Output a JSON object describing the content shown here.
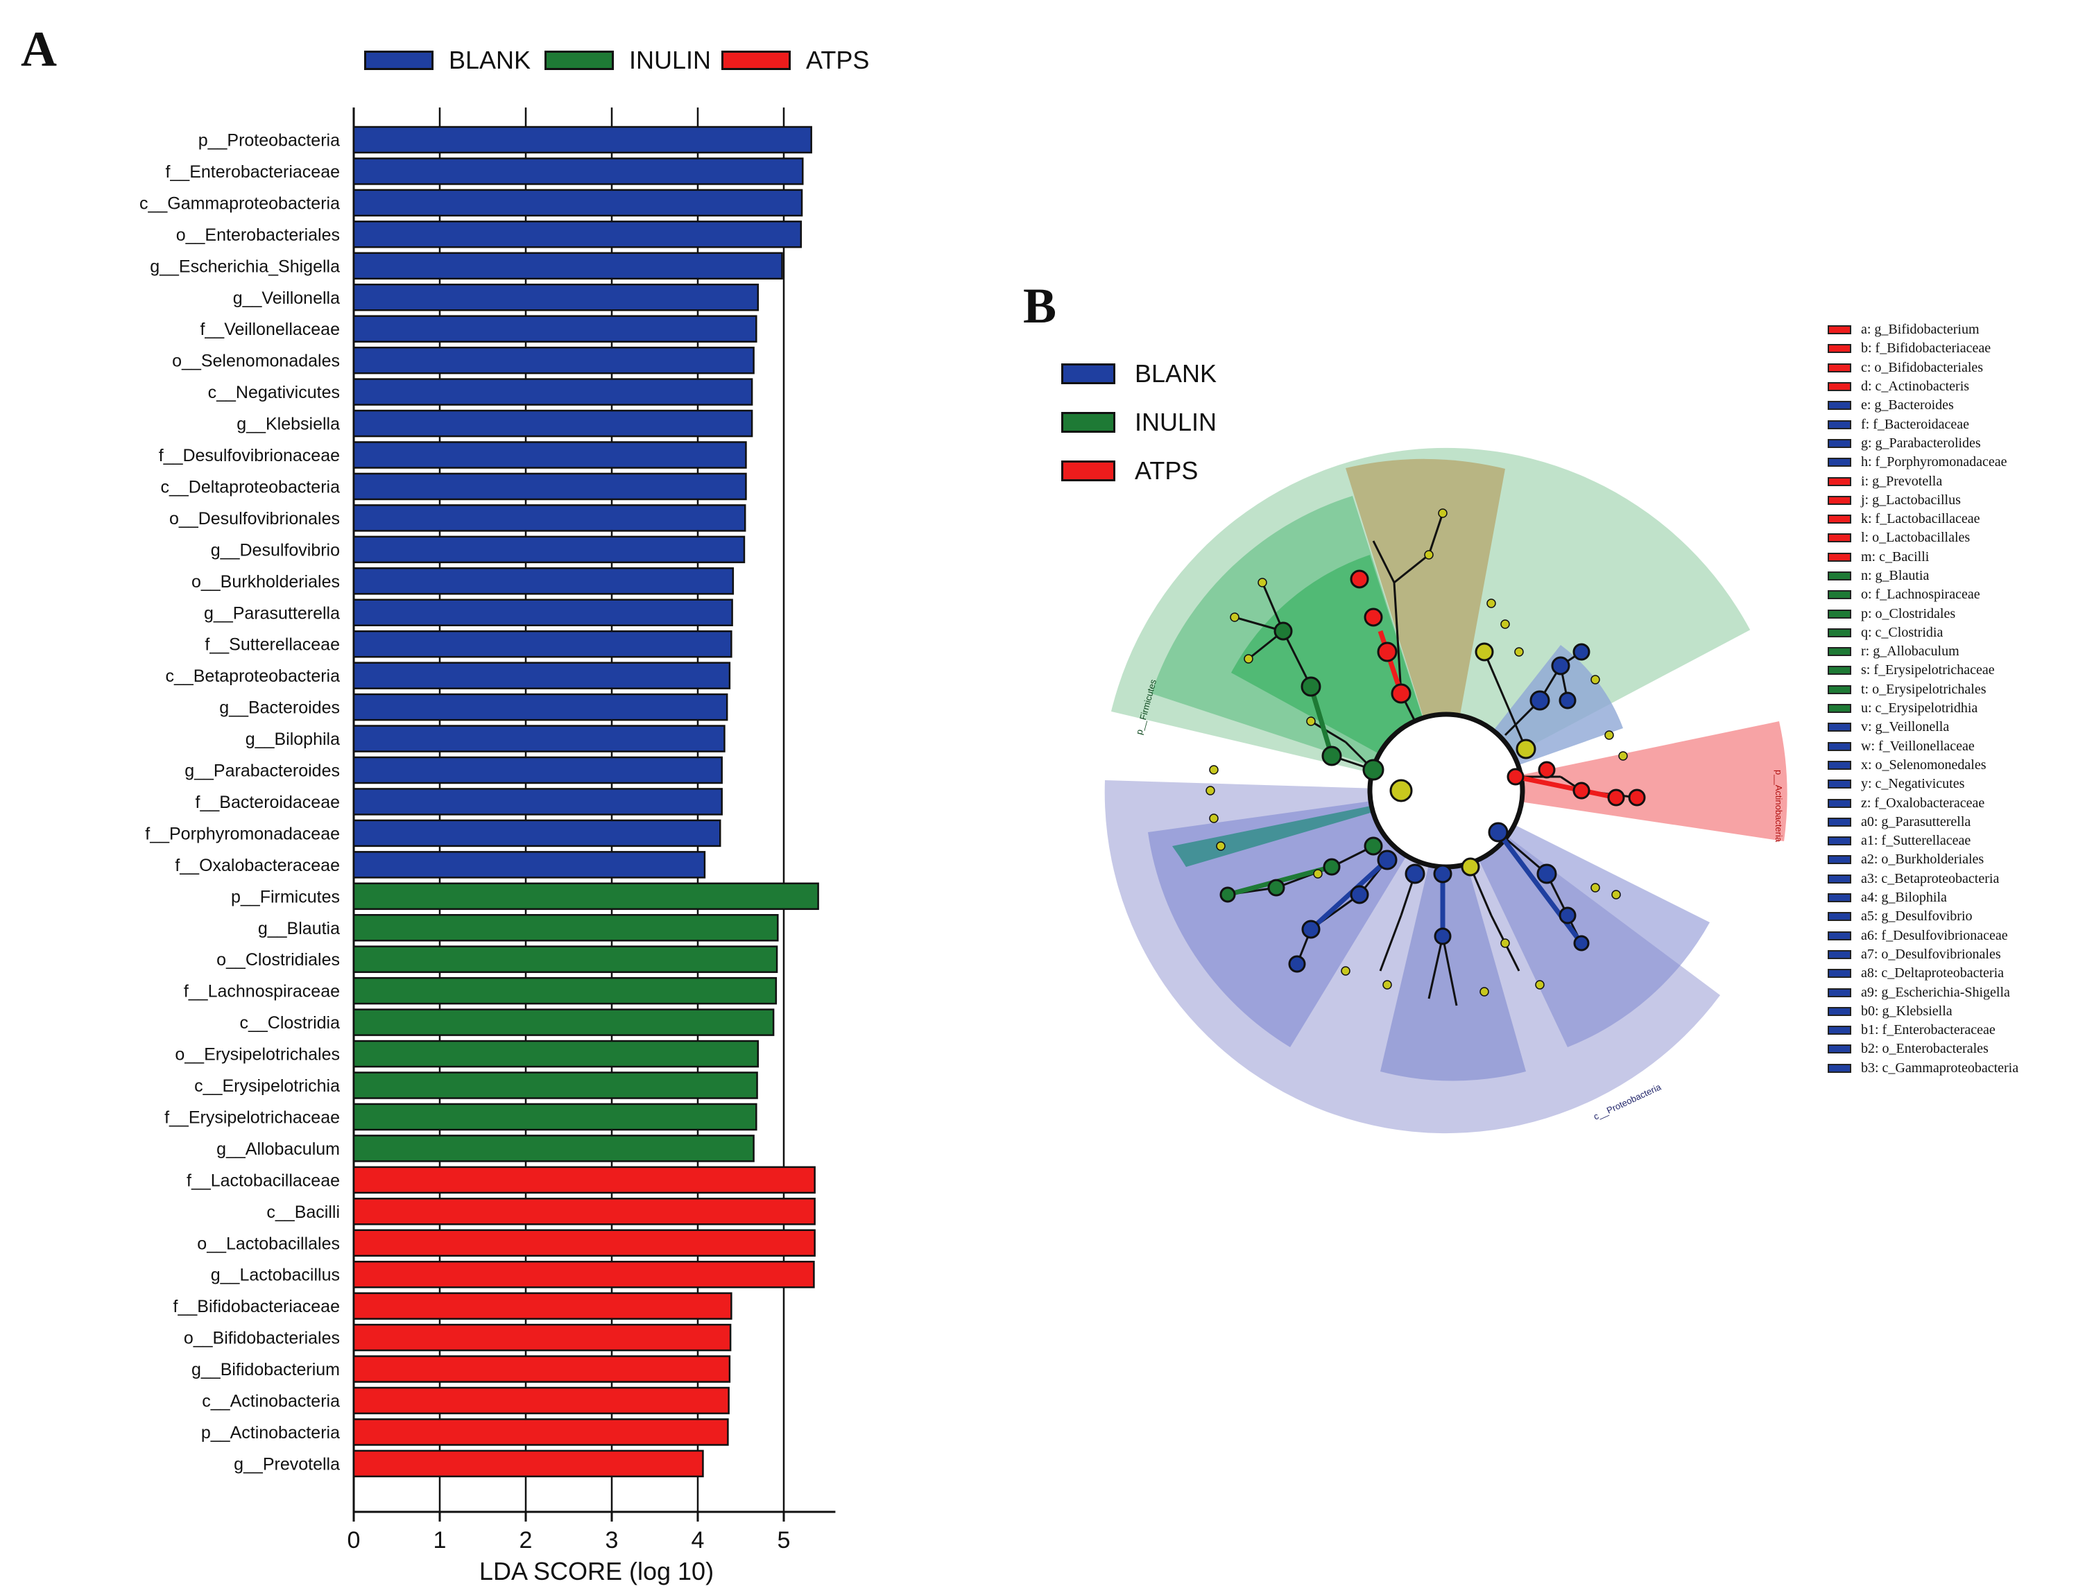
{
  "panels": {
    "a": "A",
    "b": "B"
  },
  "groups": [
    {
      "name": "BLANK",
      "color": "#1f3fa0"
    },
    {
      "name": "INULIN",
      "color": "#1e7a35"
    },
    {
      "name": "ATPS",
      "color": "#ee1c1c"
    }
  ],
  "chart_data": {
    "type": "bar",
    "orientation": "horizontal",
    "xlabel": "LDA SCORE (log 10)",
    "xlim": [
      0,
      5.6
    ],
    "xticks": [
      0,
      1,
      2,
      3,
      4,
      5
    ],
    "grid": true,
    "legend": "top",
    "categories": [
      "p__Proteobacteria",
      "f__Enterobacteriaceae",
      "c__Gammaproteobacteria",
      "o__Enterobacteriales",
      "g__Escherichia_Shigella",
      "g__Veillonella",
      "f__Veillonellaceae",
      "o__Selenomonadales",
      "c__Negativicutes",
      "g__Klebsiella",
      "f__Desulfovibrionaceae",
      "c__Deltaproteobacteria",
      "o__Desulfovibrionales",
      "g__Desulfovibrio",
      "o__Burkholderiales",
      "g__Parasutterella",
      "f__Sutterellaceae",
      "c__Betaproteobacteria",
      "g__Bacteroides",
      "g__Bilophila",
      "g__Parabacteroides",
      "f__Bacteroidaceae",
      "f__Porphyromonadaceae",
      "f__Oxalobacteraceae",
      "p__Firmicutes",
      "g__Blautia",
      "o__Clostridiales",
      "f__Lachnospiraceae",
      "c__Clostridia",
      "o__Erysipelotrichales",
      "c__Erysipelotrichia",
      "f__Erysipelotrichaceae",
      "g__Allobaculum",
      "f__Lactobacillaceae",
      "c__Bacilli",
      "o__Lactobacillales",
      "g__Lactobacillus",
      "f__Bifidobacteriaceae",
      "o__Bifidobacteriales",
      "g__Bifidobacterium",
      "c__Actinobacteria",
      "p__Actinobacteria",
      "g__Prevotella"
    ],
    "values": [
      5.32,
      5.22,
      5.21,
      5.2,
      4.98,
      4.7,
      4.68,
      4.65,
      4.63,
      4.63,
      4.56,
      4.56,
      4.55,
      4.54,
      4.41,
      4.4,
      4.39,
      4.37,
      4.34,
      4.31,
      4.28,
      4.28,
      4.26,
      4.08,
      5.4,
      4.93,
      4.92,
      4.91,
      4.88,
      4.7,
      4.69,
      4.68,
      4.65,
      5.36,
      5.36,
      5.36,
      5.35,
      4.39,
      4.38,
      4.37,
      4.36,
      4.35,
      4.06
    ],
    "groups": [
      "BLANK",
      "BLANK",
      "BLANK",
      "BLANK",
      "BLANK",
      "BLANK",
      "BLANK",
      "BLANK",
      "BLANK",
      "BLANK",
      "BLANK",
      "BLANK",
      "BLANK",
      "BLANK",
      "BLANK",
      "BLANK",
      "BLANK",
      "BLANK",
      "BLANK",
      "BLANK",
      "BLANK",
      "BLANK",
      "BLANK",
      "BLANK",
      "INULIN",
      "INULIN",
      "INULIN",
      "INULIN",
      "INULIN",
      "INULIN",
      "INULIN",
      "INULIN",
      "INULIN",
      "ATPS",
      "ATPS",
      "ATPS",
      "ATPS",
      "ATPS",
      "ATPS",
      "ATPS",
      "ATPS",
      "ATPS",
      "ATPS"
    ]
  },
  "cladogram": {
    "outer_labels": [
      "p__Actinobacteria",
      "c__Proteobacteria",
      "p__Firmicutes"
    ],
    "legend": [
      {
        "text": "a: g_Bifidobacterium",
        "group": "ATPS"
      },
      {
        "text": "b: f_Bifidobacteriaceae",
        "group": "ATPS"
      },
      {
        "text": "c: o_Bifidobacteriales",
        "group": "ATPS"
      },
      {
        "text": "d: c_Actinobacteris",
        "group": "ATPS"
      },
      {
        "text": "e: g_Bacteroides",
        "group": "BLANK"
      },
      {
        "text": "f: f_Bacteroidaceae",
        "group": "BLANK"
      },
      {
        "text": "g: g_Parabacterolides",
        "group": "BLANK"
      },
      {
        "text": "h: f_Porphyromonadaceae",
        "group": "BLANK"
      },
      {
        "text": "i: g_Prevotella",
        "group": "ATPS"
      },
      {
        "text": "j: g_Lactobacillus",
        "group": "ATPS"
      },
      {
        "text": "k: f_Lactobacillaceae",
        "group": "ATPS"
      },
      {
        "text": "l: o_Lactobacillales",
        "group": "ATPS"
      },
      {
        "text": "m: c_Bacilli",
        "group": "ATPS"
      },
      {
        "text": "n: g_Blautia",
        "group": "INULIN"
      },
      {
        "text": "o: f_Lachnospiraceae",
        "group": "INULIN"
      },
      {
        "text": "p: o_Clostridales",
        "group": "INULIN"
      },
      {
        "text": "q: c_Clostridia",
        "group": "INULIN"
      },
      {
        "text": "r: g_Allobaculum",
        "group": "INULIN"
      },
      {
        "text": "s: f_Erysipelotrichaceae",
        "group": "INULIN"
      },
      {
        "text": "t: o_Erysipelotrichales",
        "group": "INULIN"
      },
      {
        "text": "u: c_Erysipelotridhia",
        "group": "INULIN"
      },
      {
        "text": "v: g_Veillonella",
        "group": "BLANK"
      },
      {
        "text": "w: f_Veillonellaceae",
        "group": "BLANK"
      },
      {
        "text": "x: o_Selenomonedales",
        "group": "BLANK"
      },
      {
        "text": "y: c_Negativicutes",
        "group": "BLANK"
      },
      {
        "text": "z: f_Oxalobacteraceae",
        "group": "BLANK"
      },
      {
        "text": "a0: g_Parasutterella",
        "group": "BLANK"
      },
      {
        "text": "a1: f_Sutterellaceae",
        "group": "BLANK"
      },
      {
        "text": "a2: o_Burkholderiales",
        "group": "BLANK"
      },
      {
        "text": "a3: c_Betaproteobacteria",
        "group": "BLANK"
      },
      {
        "text": "a4: g_Bilophila",
        "group": "BLANK"
      },
      {
        "text": "a5: g_Desulfovibrio",
        "group": "BLANK"
      },
      {
        "text": "a6: f_Desulfovibrionaceae",
        "group": "BLANK"
      },
      {
        "text": "a7: o_Desulfovibrionales",
        "group": "BLANK"
      },
      {
        "text": "a8: c_Deltaproteobacteria",
        "group": "BLANK"
      },
      {
        "text": "a9: g_Escherichia-Shigella",
        "group": "BLANK"
      },
      {
        "text": "b0: g_Klebsiella",
        "group": "BLANK"
      },
      {
        "text": "b1: f_Enterobacteraceae",
        "group": "BLANK"
      },
      {
        "text": "b2: o_Enterobacterales",
        "group": "BLANK"
      },
      {
        "text": "b3: c_Gammaproteobacteria",
        "group": "BLANK"
      }
    ]
  }
}
